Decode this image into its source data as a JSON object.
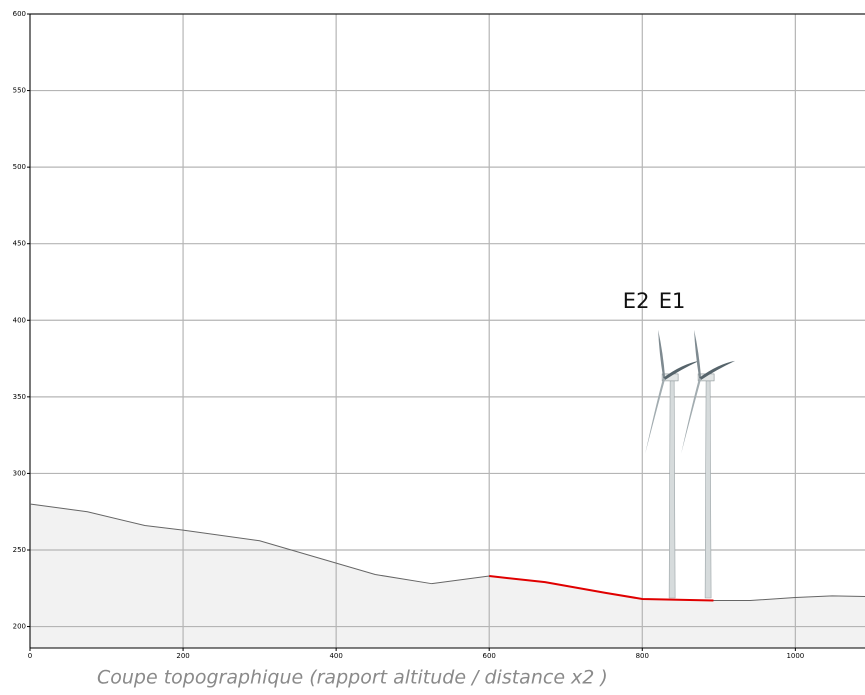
{
  "chart_data": {
    "type": "line",
    "caption": "Coupe topographique (rapport altitude / distance x2 )",
    "x": [
      0,
      75,
      150,
      200,
      300,
      451,
      525,
      600,
      673,
      752,
      800,
      893,
      941,
      1000,
      1048,
      1091
    ],
    "series": [
      {
        "color": "#666666",
        "fill": "#f2f2f2",
        "values": [
          280,
          275,
          266,
          263,
          256,
          234,
          228,
          233,
          229,
          222,
          218,
          217,
          217,
          219,
          220,
          219.6
        ]
      },
      {
        "color": "#e00000",
        "values": [
          null,
          null,
          null,
          null,
          null,
          null,
          null,
          233,
          229,
          222,
          218,
          217,
          null,
          null,
          null,
          null
        ]
      }
    ],
    "annotations": [
      {
        "text": "E2",
        "x": 839,
        "y": 412
      },
      {
        "text": "E1",
        "x": 886,
        "y": 412
      }
    ],
    "xlim": [
      0,
      1091
    ],
    "ylim": [
      186,
      600
    ],
    "xticks": [
      0,
      200,
      400,
      600,
      800,
      1000
    ],
    "yticks": [
      200,
      250,
      300,
      350,
      400,
      450,
      500,
      550,
      600
    ],
    "grid": true
  }
}
